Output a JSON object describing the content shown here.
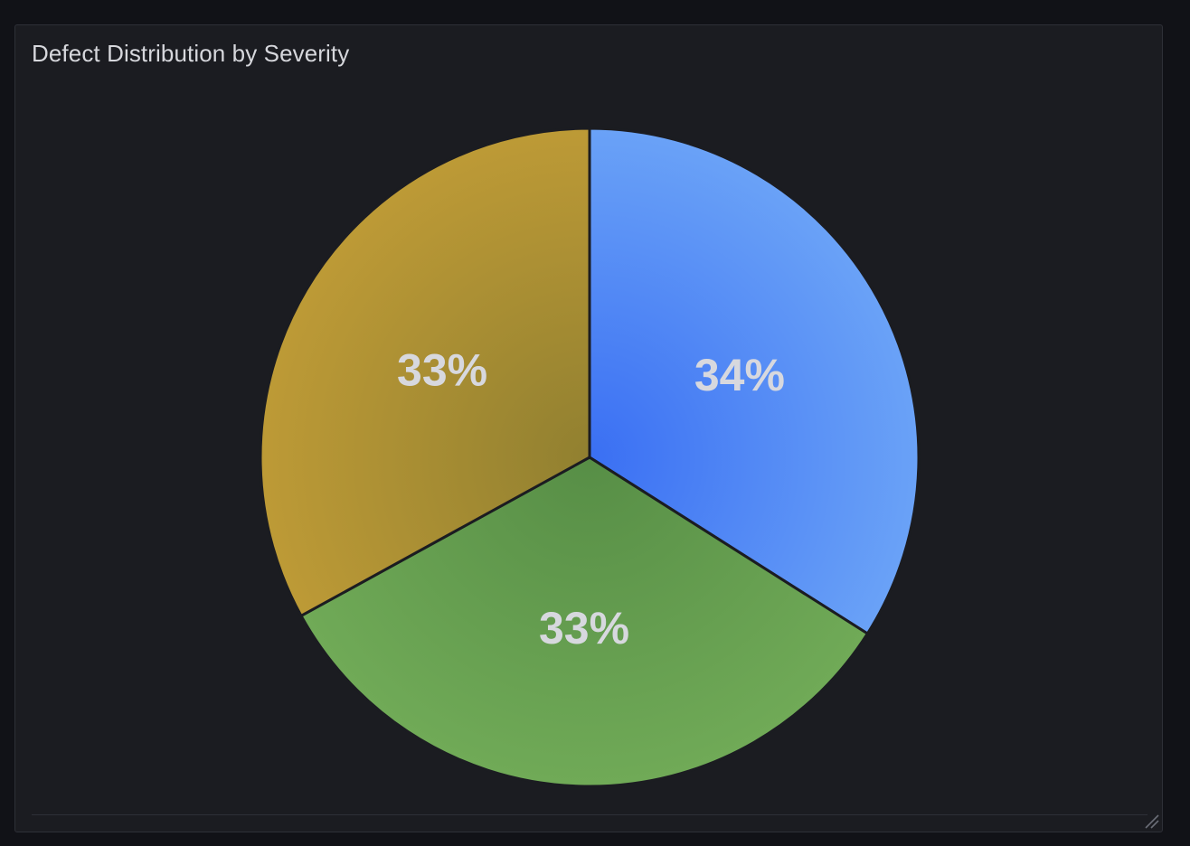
{
  "panel": {
    "title": "Defect Distribution by Severity"
  },
  "chart_data": {
    "type": "pie",
    "title": "Defect Distribution by Severity",
    "start_angle_deg": 0,
    "slices": [
      {
        "value": 34,
        "label": "34%",
        "color_light": "#6aa2f7",
        "color_dark": "#3a6ff3"
      },
      {
        "value": 33,
        "label": "33%",
        "color_light": "#70aa57",
        "color_dark": "#578e46"
      },
      {
        "value": 33,
        "label": "33%",
        "color_light": "#bd9a36",
        "color_dark": "#918030"
      }
    ],
    "legend": "none"
  },
  "icons": {
    "resize": "resize-handle-icon"
  }
}
